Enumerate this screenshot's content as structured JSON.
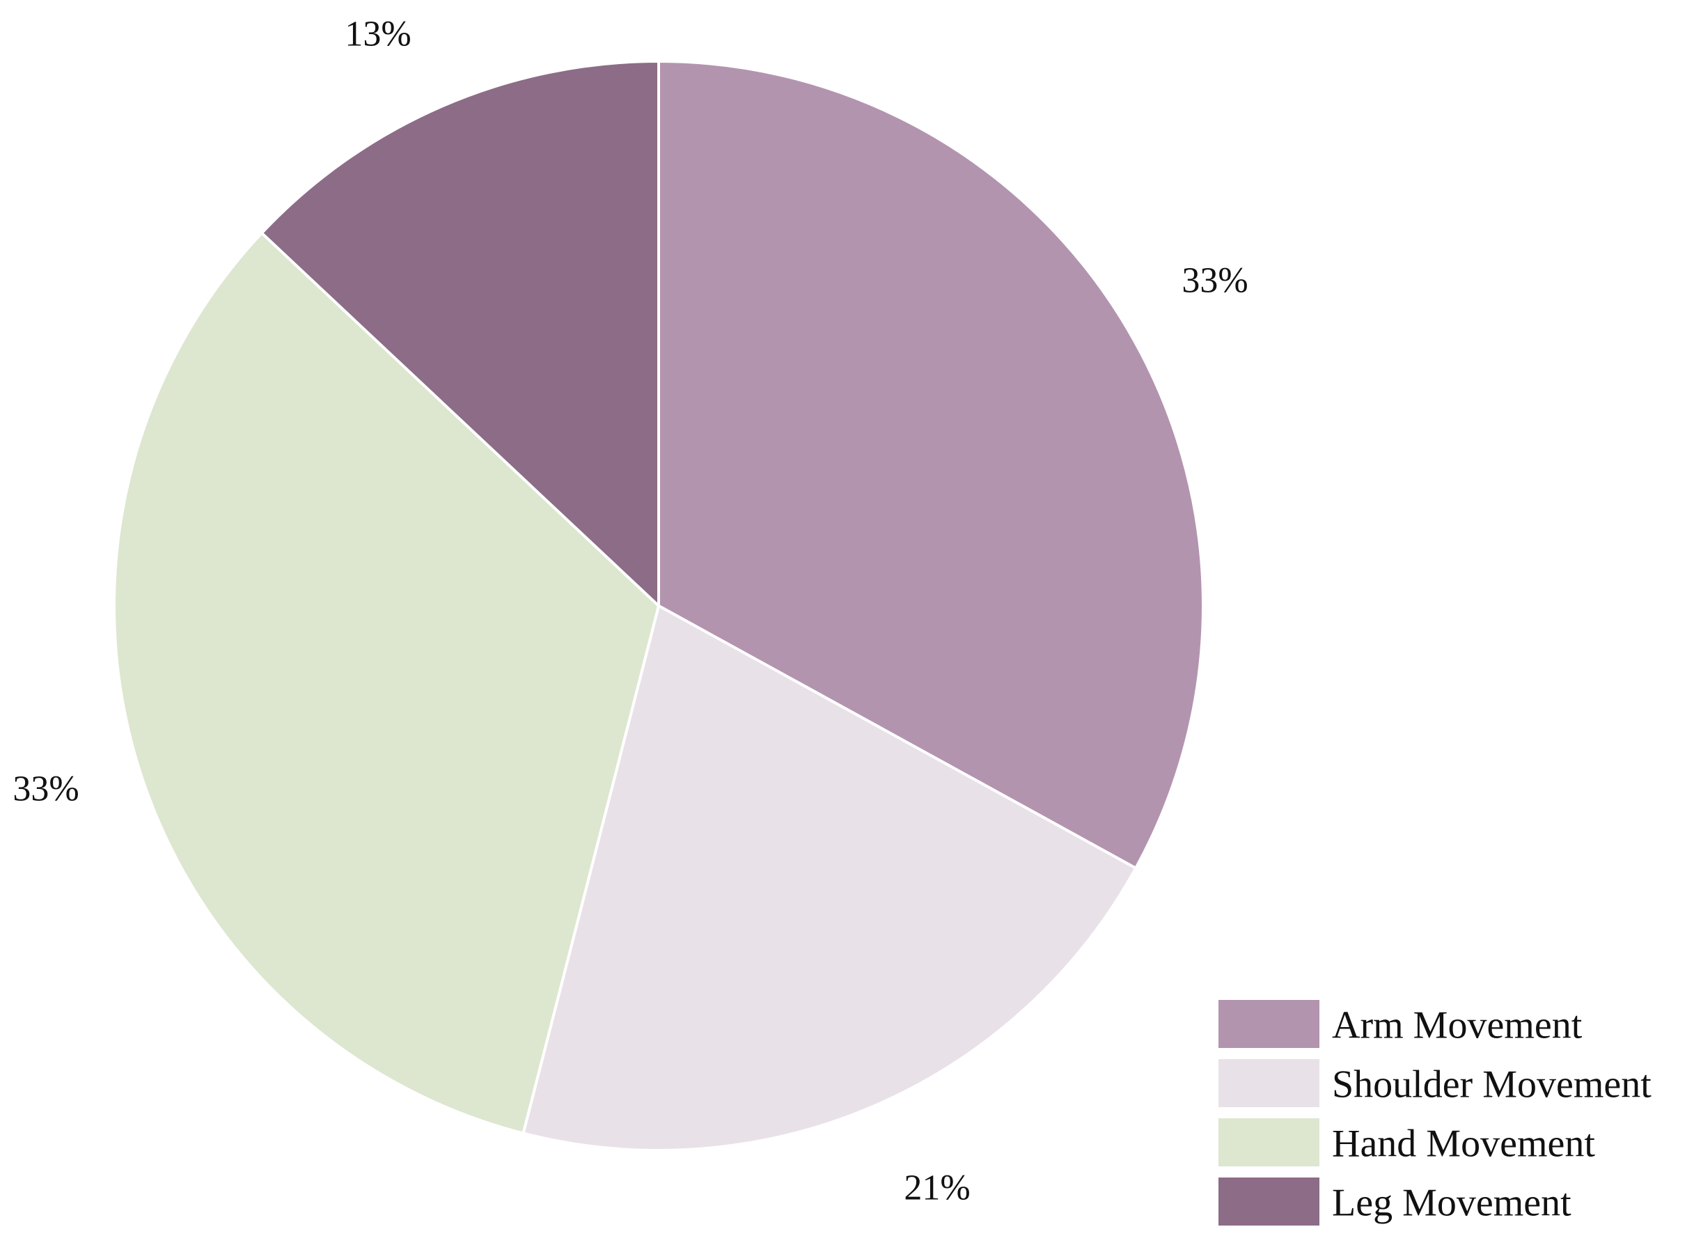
{
  "chart_data": {
    "type": "pie",
    "title": "",
    "start_angle_deg": 0,
    "direction": "clockwise",
    "legend_position": "bottom-right",
    "slices": [
      {
        "name": "Arm Movement",
        "value": 33,
        "label": "33%",
        "color": "#b394af"
      },
      {
        "name": "Shoulder Movement",
        "value": 21,
        "label": "21%",
        "color": "#e9e1e8"
      },
      {
        "name": "Hand Movement",
        "value": 33,
        "label": "33%",
        "color": "#dde6cf"
      },
      {
        "name": "Leg Movement",
        "value": 13,
        "label": "13%",
        "color": "#8c6c86"
      }
    ]
  }
}
